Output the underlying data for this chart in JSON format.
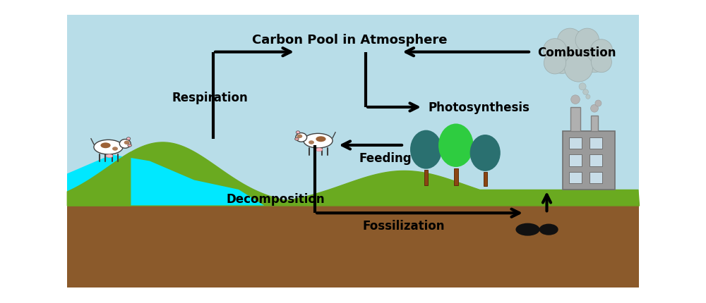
{
  "bg_sky_color": "#b8dde8",
  "bg_ground_color": "#8B5A2B",
  "bg_grass_color": "#6aaa20",
  "water_color": "#00e8ff",
  "arrow_color": "#000000",
  "arrow_lw": 3.0,
  "label_fontsize": 12,
  "label_fontweight": "bold",
  "labels": {
    "atmosphere": "Carbon Pool in Atmosphere",
    "combustion": "Combustion",
    "photosynthesis": "Photosynthesis",
    "respiration": "Respiration",
    "decomposition": "Decomposition",
    "feeding": "Feeding",
    "fossilization": "Fossilization"
  },
  "fig_width": 10.0,
  "fig_height": 4.31,
  "dpi": 100,
  "xlim": [
    0,
    10
  ],
  "ylim": [
    0,
    4.31
  ],
  "sky_y": 1.3,
  "ground_y": 1.3
}
